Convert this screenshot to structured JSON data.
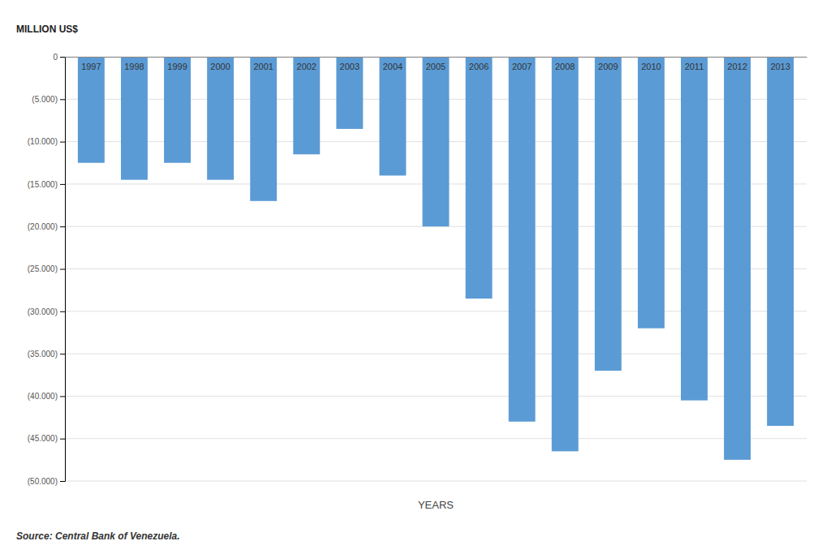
{
  "chart_data": {
    "type": "bar",
    "categories": [
      "1997",
      "1998",
      "1999",
      "2000",
      "2001",
      "2002",
      "2003",
      "2004",
      "2005",
      "2006",
      "2007",
      "2008",
      "2009",
      "2010",
      "2011",
      "2012",
      "2013"
    ],
    "values": [
      -12500,
      -14500,
      -12500,
      -14500,
      -17000,
      -11500,
      -8500,
      -14000,
      -20000,
      -28500,
      -43000,
      -46500,
      -37000,
      -32000,
      -40500,
      -47500,
      -43500
    ],
    "color": "#5B9BD5",
    "xlabel": "YEARS",
    "ylabel": "MILLION US$",
    "annotations": [
      "Source: Central Bank of Venezuela."
    ],
    "ylim": [
      -50000,
      0
    ],
    "yticks": [
      {
        "value": -50000,
        "label": "(50.000)"
      },
      {
        "value": -45000,
        "label": "(45.000)"
      },
      {
        "value": -40000,
        "label": "(40.000)"
      },
      {
        "value": -35000,
        "label": "(35.000)"
      },
      {
        "value": -30000,
        "label": "(30.000)"
      },
      {
        "value": -25000,
        "label": "(25.000)"
      },
      {
        "value": -20000,
        "label": "(20.000)"
      },
      {
        "value": -15000,
        "label": "(15.000)"
      },
      {
        "value": -10000,
        "label": "(10.000)"
      },
      {
        "value": -5000,
        "label": "(5.000)"
      },
      0
    ],
    "grid": true
  }
}
